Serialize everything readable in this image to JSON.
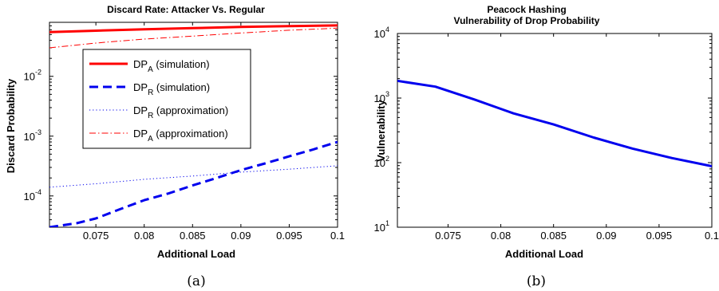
{
  "chart_data": [
    {
      "type": "line",
      "title": "Discard Rate: Attacker Vs. Regular",
      "xlabel": "Additional Load",
      "ylabel": "Discard Probability",
      "yscale": "log",
      "xlim": [
        0.0702,
        0.1
      ],
      "ylim": [
        3e-05,
        0.08
      ],
      "x_ticks": [
        "0.075",
        "0.08",
        "0.085",
        "0.09",
        "0.095",
        "0.1"
      ],
      "y_ticks": [
        {
          "base": "10",
          "exp": "-4",
          "value": 0.0001
        },
        {
          "base": "10",
          "exp": "-3",
          "value": 0.001
        },
        {
          "base": "10",
          "exp": "-2",
          "value": 0.01
        }
      ],
      "grid": false,
      "legend_position": "center-left",
      "panel_label": "(a)",
      "series": [
        {
          "name": "DP_A (simulation)",
          "legend_main": "DP",
          "legend_sub": "A",
          "legend_rest": " (simulation)",
          "color": "#ff0000",
          "style": "solid",
          "width": 3,
          "x": [
            0.0702,
            0.075,
            0.08,
            0.085,
            0.09,
            0.095,
            0.1
          ],
          "y": [
            0.055,
            0.058,
            0.061,
            0.064,
            0.067,
            0.069,
            0.071
          ]
        },
        {
          "name": "DP_R (simulation)",
          "legend_main": "DP",
          "legend_sub": "R",
          "legend_rest": " (simulation)",
          "color": "#0000ee",
          "style": "dashed",
          "width": 3,
          "x": [
            0.0702,
            0.073,
            0.075,
            0.0775,
            0.08,
            0.0825,
            0.085,
            0.0875,
            0.09,
            0.0925,
            0.095,
            0.0975,
            0.1
          ],
          "y": [
            3e-05,
            3.5e-05,
            4.2e-05,
            6e-05,
            8.5e-05,
            0.00011,
            0.00015,
            0.0002,
            0.00027,
            0.00035,
            0.00046,
            0.0006,
            0.0008
          ]
        },
        {
          "name": "DP_R (approximation)",
          "legend_main": "DP",
          "legend_sub": "R",
          "legend_rest": " (approximation)",
          "color": "#0000ee",
          "style": "dotted",
          "width": 1,
          "x": [
            0.0702,
            0.075,
            0.08,
            0.085,
            0.09,
            0.095,
            0.1
          ],
          "y": [
            0.00014,
            0.00016,
            0.00019,
            0.000215,
            0.00025,
            0.00028,
            0.00032
          ]
        },
        {
          "name": "DP_A (approximation)",
          "legend_main": "DP",
          "legend_sub": "A",
          "legend_rest": " (approximation)",
          "color": "#ff0000",
          "style": "dashdot",
          "width": 1,
          "x": [
            0.0702,
            0.075,
            0.08,
            0.085,
            0.09,
            0.095,
            0.1
          ],
          "y": [
            0.03,
            0.036,
            0.042,
            0.047,
            0.053,
            0.059,
            0.064
          ]
        }
      ]
    },
    {
      "type": "line",
      "title": "Peacock Hashing",
      "subtitle": "Vulnerability of Drop Probability",
      "xlabel": "Additional Load",
      "ylabel": "Vulnerability",
      "yscale": "log",
      "xlim": [
        0.0702,
        0.1
      ],
      "ylim": [
        10,
        10000
      ],
      "x_ticks": [
        "0.075",
        "0.08",
        "0.085",
        "0.09",
        "0.095",
        "0.1"
      ],
      "y_ticks": [
        {
          "base": "10",
          "exp": "1",
          "value": 10
        },
        {
          "base": "10",
          "exp": "2",
          "value": 100
        },
        {
          "base": "10",
          "exp": "3",
          "value": 1000
        },
        {
          "base": "10",
          "exp": "4",
          "value": 10000
        }
      ],
      "grid": false,
      "panel_label": "(b)",
      "series": [
        {
          "color": "#0000ee",
          "style": "solid",
          "width": 3,
          "x": [
            0.0702,
            0.0738,
            0.0775,
            0.0812,
            0.085,
            0.0888,
            0.0925,
            0.0962,
            0.1
          ],
          "y": [
            1850,
            1500,
            950,
            580,
            390,
            245,
            165,
            118,
            88
          ]
        }
      ]
    }
  ]
}
